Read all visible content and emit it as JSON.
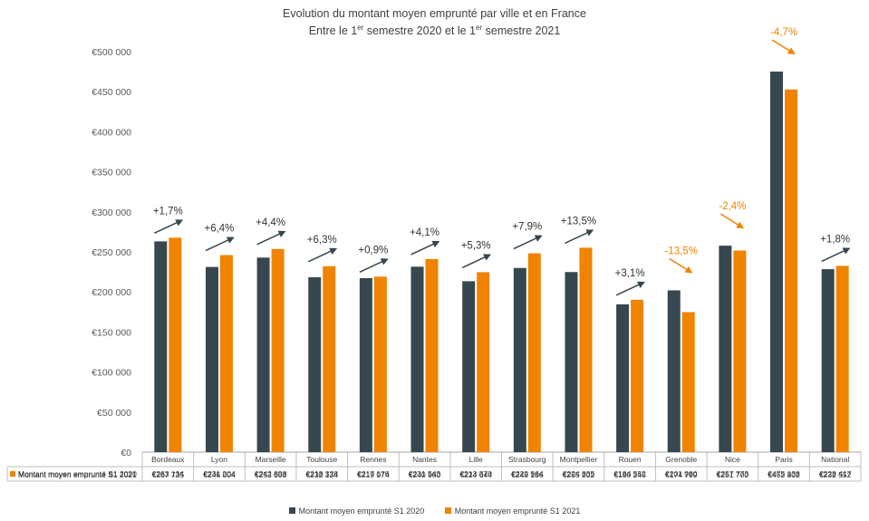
{
  "title_line1": "Evolution du montant moyen emprunté par ville et en France",
  "title_line2": {
    "a": "Entre le 1",
    "sup1": "er",
    "b": " semestre 2020 et le 1",
    "sup2": "er",
    "c": " semestre 2021"
  },
  "colors": {
    "s2020": "#37474f",
    "s2021": "#f08300",
    "arrow_up": "#37474f",
    "arrow_down": "#f08300"
  },
  "chart_data": {
    "type": "bar",
    "title": "Evolution du montant moyen emprunté par ville et en France - Entre le 1er semestre 2020 et le 1er semestre 2021",
    "categories": [
      "Bordeaux",
      "Lyon",
      "Marseille",
      "Toulouse",
      "Rennes",
      "Nantes",
      "Lille",
      "Strasbourg",
      "Montpellier",
      "Rouen",
      "Grenoble",
      "Nice",
      "Paris",
      "National"
    ],
    "series": [
      {
        "name": "Montant moyen emprunté S1 2020",
        "values": [
          263134,
          231204,
          242898,
          218328,
          217176,
          231543,
          213370,
          229964,
          224835,
          184552,
          201980,
          257773,
          475138,
          228417
        ],
        "labels": [
          "€263 134",
          "€231 204",
          "€242 898",
          "€218 328",
          "€217 176",
          "€231 543",
          "€213 370",
          "€229 964",
          "€224 835",
          "€184 552",
          "€201 980",
          "€257 773",
          "€475 138",
          "€228 417"
        ]
      },
      {
        "name": "Montant moyen emprunté S1 2021",
        "values": [
          267735,
          246004,
          253603,
          232134,
          219074,
          240980,
          224644,
          248186,
          255202,
          190245,
          174799,
          251700,
          452802,
          232552
        ],
        "labels": [
          "€267 735",
          "€246 004",
          "€253 603",
          "€232 134",
          "€219 074",
          "€240 980",
          "€224 644",
          "€248 186",
          "€255 202",
          "€190 245",
          "€174 799",
          "€251 700",
          "€452 802",
          "€232 552"
        ]
      }
    ],
    "changes": [
      "+1,7%",
      "+6,4%",
      "+4,4%",
      "+6,3%",
      "+0,9%",
      "+4,1%",
      "+5,3%",
      "+7,9%",
      "+13,5%",
      "+3,1%",
      "-13,5%",
      "-2,4%",
      "-4,7%",
      "+1,8%"
    ],
    "y_ticks": [
      "€0",
      "€50 000",
      "€100 000",
      "€150 000",
      "€200 000",
      "€250 000",
      "€300 000",
      "€350 000",
      "€400 000",
      "€450 000",
      "€500 000"
    ],
    "ylim": [
      0,
      500000
    ],
    "grid": false,
    "legend_position": "bottom",
    "data_table": true
  }
}
